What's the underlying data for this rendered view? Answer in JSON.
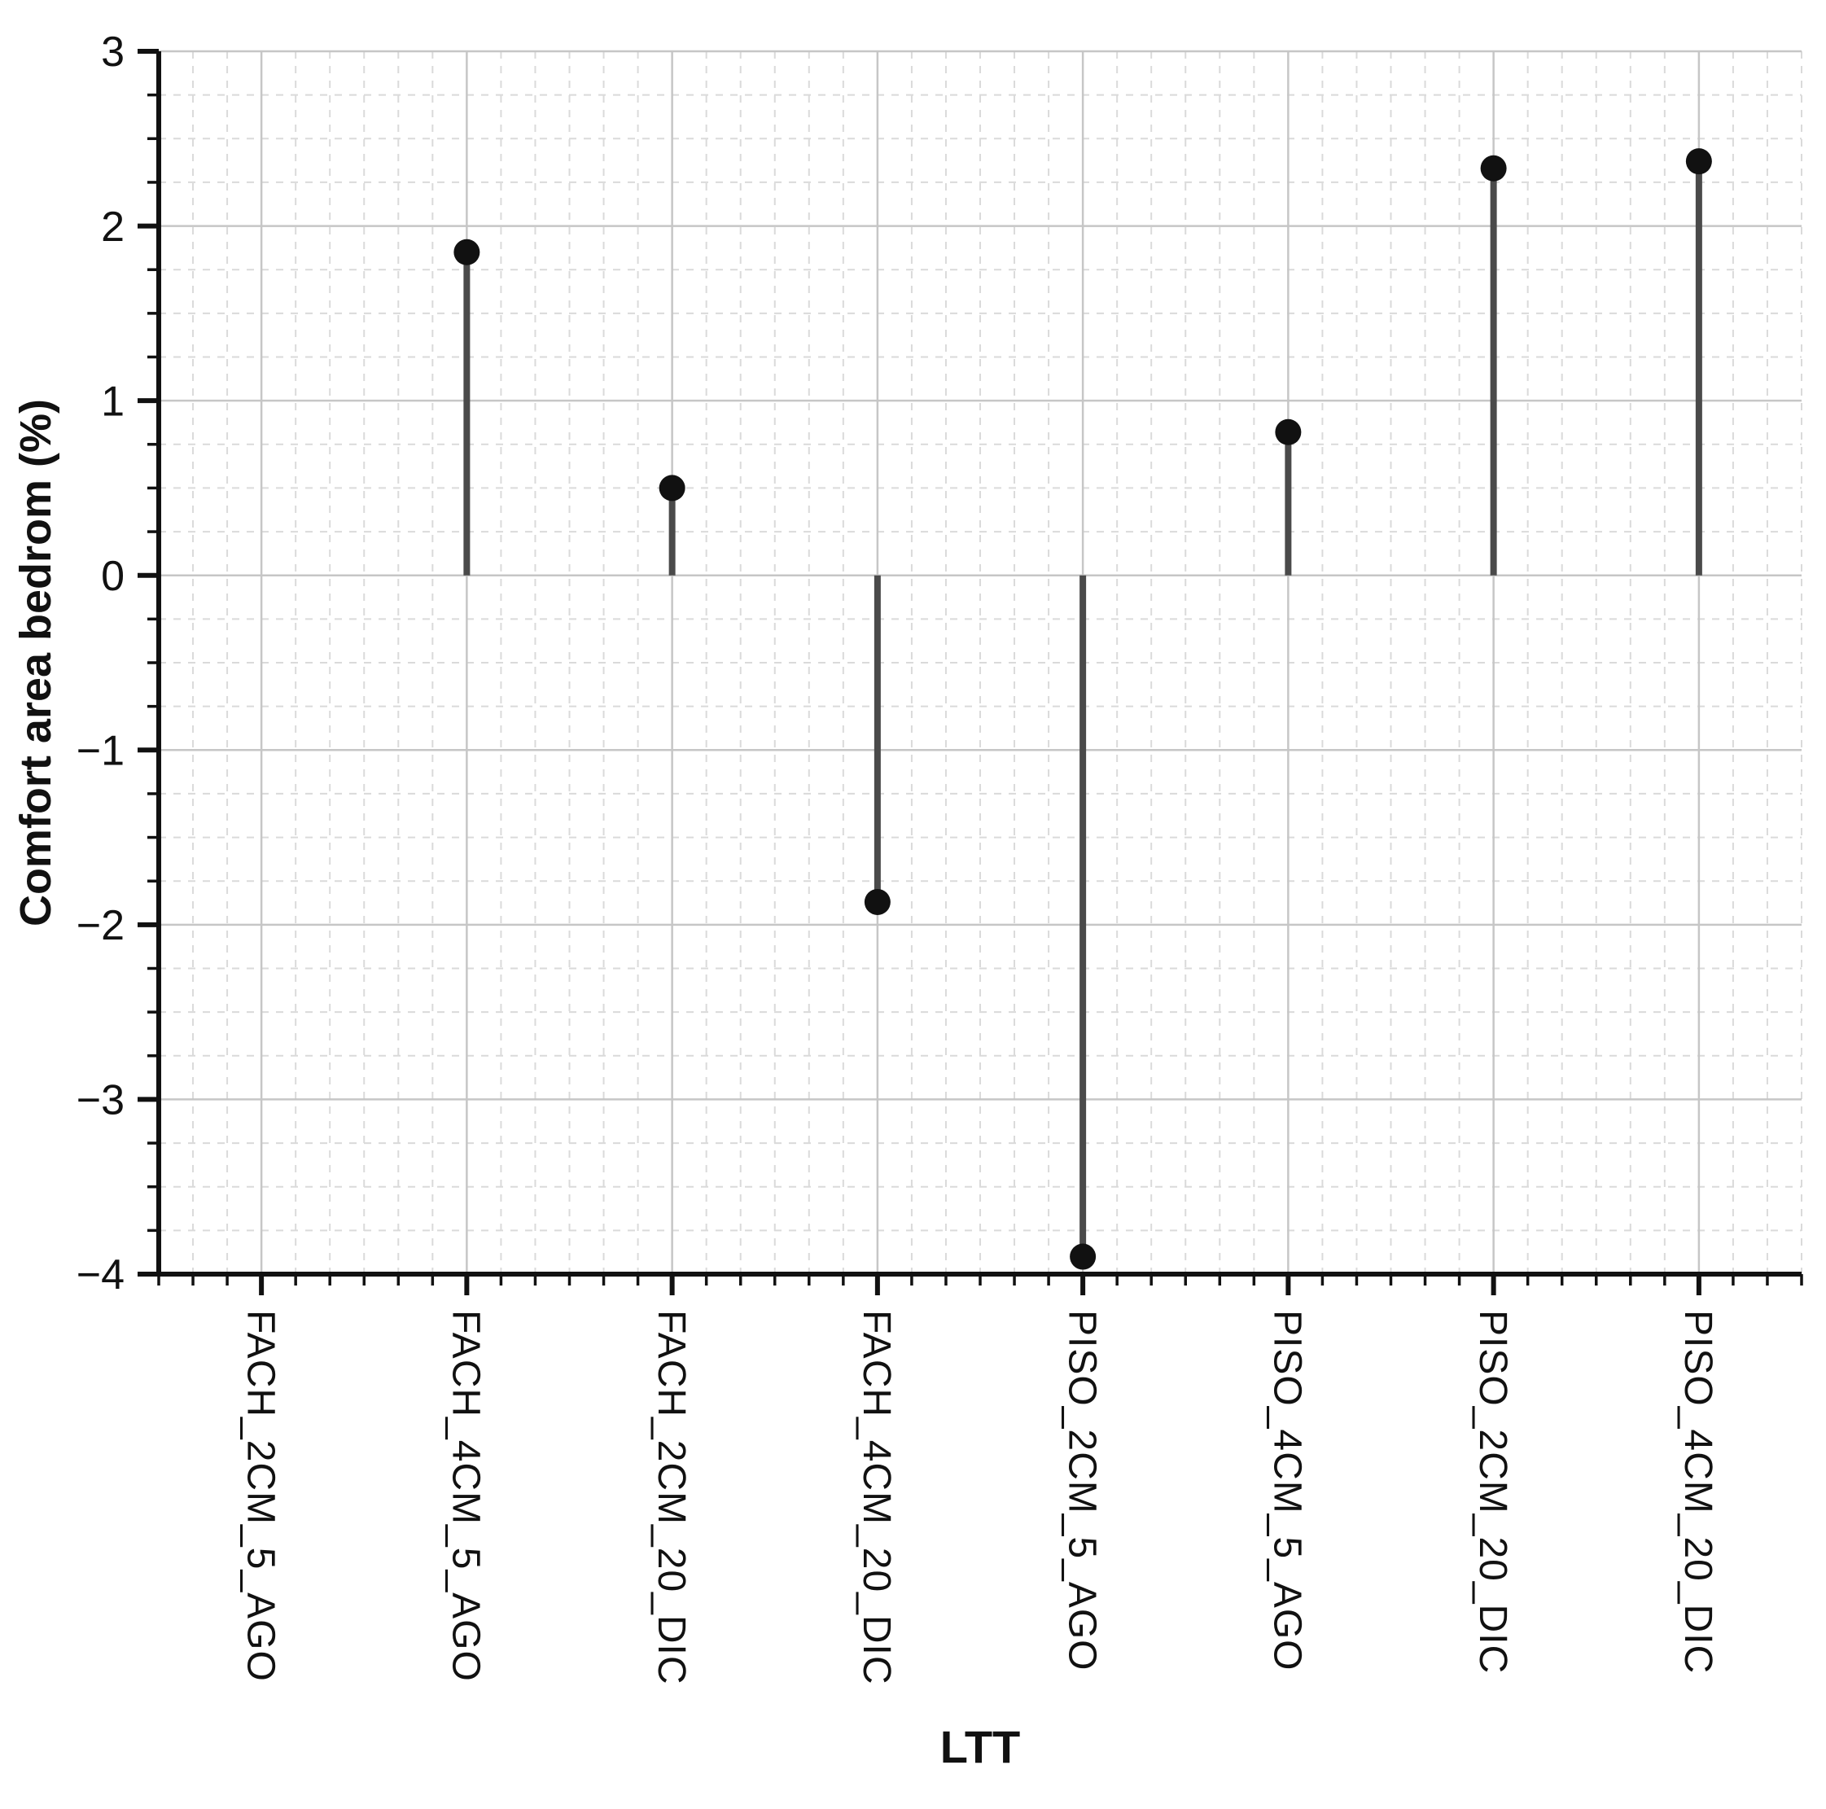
{
  "chart_data": {
    "type": "stem",
    "title": "",
    "xlabel": "LTT",
    "ylabel": "Comfort area bedrom (%)",
    "categories": [
      "FACH_2CM_5_AGO",
      "FACH_4CM_5_AGO",
      "FACH_2CM_20_DIC",
      "FACH_4CM_20_DIC",
      "PISO_2CM_5_AGO",
      "PISO_4CM_5_AGO",
      "PISO_2CM_20_DIC",
      "PISO_4CM_20_DIC"
    ],
    "values": [
      0,
      1.85,
      0.5,
      -1.87,
      -3.9,
      0.82,
      2.33,
      2.37
    ],
    "ylim": [
      -4,
      3
    ],
    "yticks": [
      -4,
      -3,
      -2,
      -1,
      0,
      1,
      2,
      3
    ],
    "y_minor_step": 0.25,
    "x_minor_subdivisions": 6,
    "legend": "none",
    "grid": {
      "major_solid": true,
      "minor_dashed": true
    },
    "marker": "filled-circle",
    "colors": {
      "stem": "#4a4a4a",
      "marker": "#111111",
      "major_grid": "#c6c6c6",
      "minor_grid": "#dadada",
      "axis": "#111111",
      "text": "#111111",
      "background": "#ffffff"
    }
  }
}
